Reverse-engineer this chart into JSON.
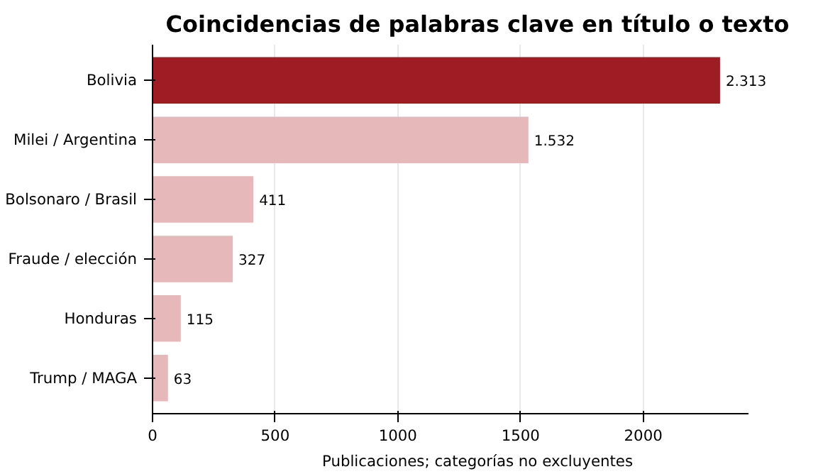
{
  "chart_data": {
    "type": "bar",
    "orientation": "horizontal",
    "title": "Coincidencias de palabras clave en título o texto",
    "xlabel": "Publicaciones; categorías no excluyentes",
    "categories": [
      "Bolivia",
      "Milei / Argentina",
      "Bolsonaro / Brasil",
      "Fraude / elección",
      "Honduras",
      "Trump / MAGA"
    ],
    "values": [
      2313,
      1532,
      411,
      327,
      115,
      63
    ],
    "colors": [
      "#a01c24",
      "#e6b8b9",
      "#e6b8b9",
      "#e6b8b9",
      "#e6b8b9",
      "#e6b8b9"
    ],
    "value_labels": [
      "2.313",
      "1.532",
      "411",
      "327",
      "115",
      "63"
    ],
    "xlim": [
      0,
      2430
    ],
    "xticks": [
      0,
      500,
      1000,
      1500,
      2000
    ],
    "grid": "x"
  }
}
